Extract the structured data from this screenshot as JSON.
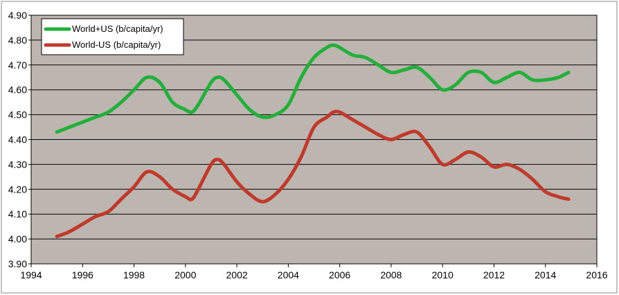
{
  "chart_data": {
    "type": "line",
    "title": "",
    "xlabel": "",
    "ylabel": "",
    "xlim": [
      1994,
      2016
    ],
    "ylim": [
      3.9,
      4.9
    ],
    "x_ticks": [
      "1994",
      "1996",
      "1998",
      "2000",
      "2002",
      "2004",
      "2006",
      "2008",
      "2010",
      "2012",
      "2014",
      "2016"
    ],
    "y_ticks": [
      "3.90",
      "4.00",
      "4.10",
      "4.20",
      "4.30",
      "4.40",
      "4.50",
      "4.60",
      "4.70",
      "4.80",
      "4.90"
    ],
    "grid": "horizontal",
    "legend_position": "top-left",
    "plot_background": "#bdb6b0",
    "series": [
      {
        "name": "World+US (b/capita/yr)",
        "color": "#22b03a",
        "x": [
          1995,
          1995.5,
          1996,
          1996.5,
          1997,
          1997.5,
          1998,
          1998.5,
          1999,
          1999.5,
          2000,
          2000.25,
          2000.5,
          2001,
          2001.25,
          2001.5,
          2002,
          2002.5,
          2003,
          2003.5,
          2004,
          2004.5,
          2005,
          2005.5,
          2005.75,
          2006,
          2006.5,
          2007,
          2007.5,
          2008,
          2008.5,
          2009,
          2009.5,
          2010,
          2010.5,
          2011,
          2011.5,
          2012,
          2012.5,
          2013,
          2013.5,
          2014,
          2014.5,
          2014.9
        ],
        "y": [
          4.43,
          4.45,
          4.47,
          4.49,
          4.51,
          4.55,
          4.6,
          4.65,
          4.63,
          4.55,
          4.52,
          4.51,
          4.54,
          4.63,
          4.65,
          4.64,
          4.58,
          4.52,
          4.49,
          4.5,
          4.54,
          4.65,
          4.73,
          4.77,
          4.78,
          4.77,
          4.74,
          4.73,
          4.7,
          4.67,
          4.68,
          4.69,
          4.65,
          4.6,
          4.62,
          4.67,
          4.67,
          4.63,
          4.65,
          4.67,
          4.64,
          4.64,
          4.65,
          4.67
        ]
      },
      {
        "name": "World-US (b/capita/yr)",
        "color": "#c0392b",
        "x": [
          1995,
          1995.5,
          1996,
          1996.5,
          1997,
          1997.5,
          1998,
          1998.5,
          1999,
          1999.5,
          2000,
          2000.25,
          2000.5,
          2001,
          2001.25,
          2001.5,
          2002,
          2002.5,
          2003,
          2003.5,
          2004,
          2004.5,
          2005,
          2005.5,
          2005.75,
          2006,
          2006.5,
          2007,
          2007.5,
          2008,
          2008.5,
          2009,
          2009.5,
          2010,
          2010.5,
          2011,
          2011.5,
          2012,
          2012.5,
          2013,
          2013.5,
          2014,
          2014.5,
          2014.9
        ],
        "y": [
          4.01,
          4.03,
          4.06,
          4.09,
          4.11,
          4.16,
          4.21,
          4.27,
          4.25,
          4.2,
          4.17,
          4.16,
          4.2,
          4.3,
          4.32,
          4.3,
          4.23,
          4.18,
          4.15,
          4.18,
          4.24,
          4.33,
          4.45,
          4.49,
          4.51,
          4.51,
          4.48,
          4.45,
          4.42,
          4.4,
          4.42,
          4.43,
          4.37,
          4.3,
          4.32,
          4.35,
          4.33,
          4.29,
          4.3,
          4.28,
          4.24,
          4.19,
          4.17,
          4.16
        ]
      }
    ]
  }
}
